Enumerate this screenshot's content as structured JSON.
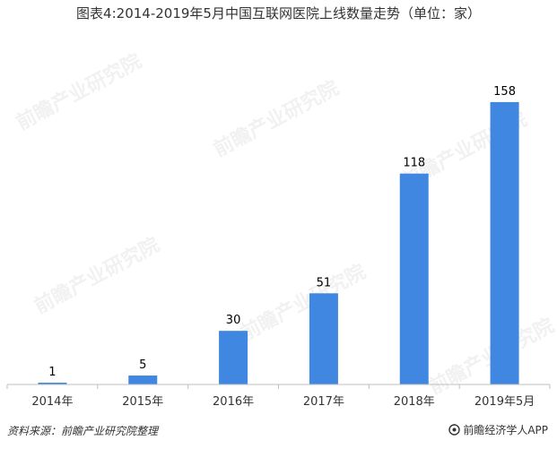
{
  "title": "图表4:2014-2019年5月中国互联网医院上线数量走势（单位：家）",
  "source": "资料来源：前瞻产业研究院整理",
  "brand": "前瞻经济学人APP",
  "watermark": "前瞻产业研究院",
  "colors": {
    "bar": "#3f87e0",
    "axis": "#bfbfbf",
    "text": "#333333"
  },
  "chart_data": {
    "type": "bar",
    "title": "图表4:2014-2019年5月中国互联网医院上线数量走势（单位：家）",
    "categories": [
      "2014年",
      "2015年",
      "2016年",
      "2017年",
      "2018年",
      "2019年5月"
    ],
    "values": [
      1,
      5,
      30,
      51,
      118,
      158
    ],
    "xlabel": "",
    "ylabel": "",
    "ylim": [
      0,
      175
    ],
    "grid": false,
    "legend": "none",
    "data_labels": true
  }
}
